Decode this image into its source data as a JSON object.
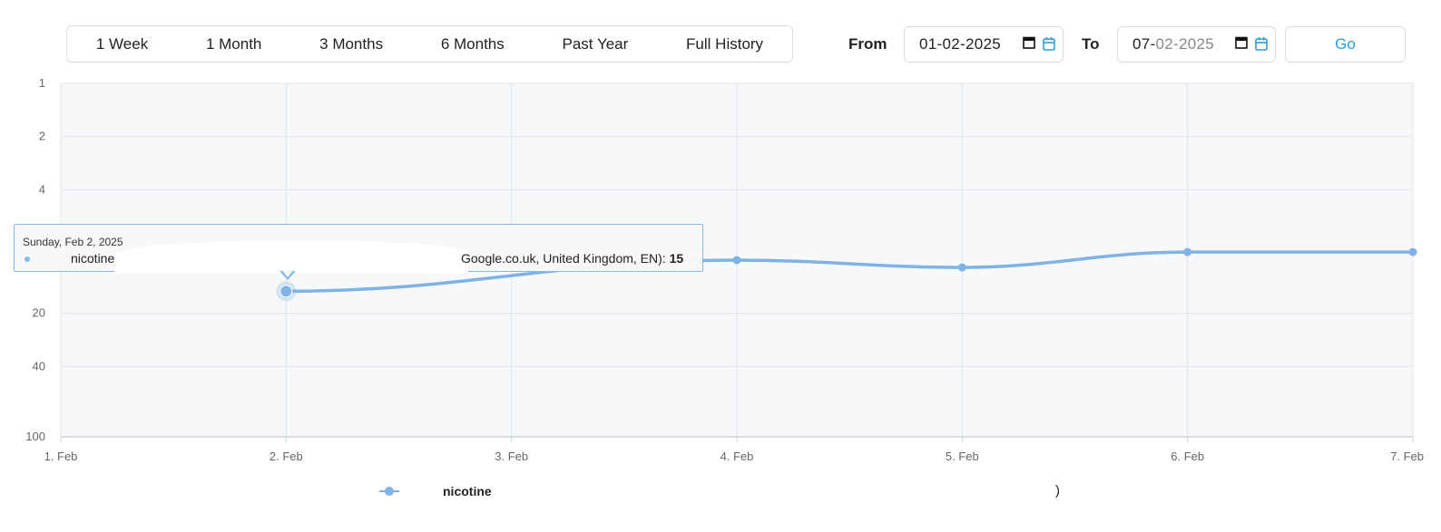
{
  "range_buttons": [
    "1 Week",
    "1 Month",
    "3 Months",
    "6 Months",
    "Past Year",
    "Full History"
  ],
  "date_range": {
    "from_label": "From",
    "from_value": "01-02-2025",
    "to_label": "To",
    "to_value_prefix": "07-",
    "to_value_rest": "02-2025",
    "go_label": "Go"
  },
  "tooltip": {
    "date": "Sunday, Feb 2, 2025",
    "series_label": "nicotine",
    "context_text": "Google.co.uk, United Kingdom, EN): ",
    "value": "15"
  },
  "legend": {
    "series_label": "nicotine",
    "trailing": ")"
  },
  "colors": {
    "series": "#7fb2e5",
    "accent": "#2a9fd6",
    "plot_bg": "#f7f8f9",
    "grid": "#e3e6ea"
  },
  "chart_data": {
    "type": "line",
    "categories": [
      "1. Feb",
      "2. Feb",
      "3. Feb",
      "4. Feb",
      "5. Feb",
      "6. Feb",
      "7. Feb"
    ],
    "y_ticks": [
      1,
      2,
      4,
      20,
      40,
      100
    ],
    "y_axis": {
      "scale": "logarithmic",
      "reversed": true,
      "range": [
        1,
        100
      ]
    },
    "series": [
      {
        "name": "nicotine",
        "points": [
          {
            "x": "2. Feb",
            "y": 15
          },
          {
            "x": "4. Feb",
            "y": 10
          },
          {
            "x": "5. Feb",
            "y": 11
          },
          {
            "x": "6. Feb",
            "y": 9
          },
          {
            "x": "7. Feb",
            "y": 9
          }
        ]
      }
    ],
    "grid": true,
    "legend_position": "bottom"
  }
}
